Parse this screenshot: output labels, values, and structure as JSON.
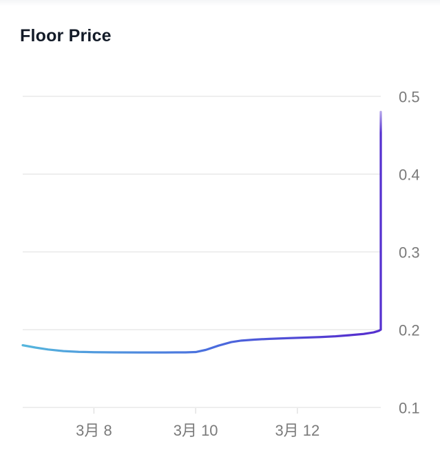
{
  "page": {
    "title": "Floor Price"
  },
  "chart_data": {
    "type": "line",
    "title": "Floor Price",
    "x_unit": "date (March / 3月)",
    "y_unit": "price",
    "legend": "none",
    "grid": "horizontal only",
    "y_axis_side": "right",
    "x_range_day": [
      6.6,
      13.64
    ],
    "y_range": [
      0.1,
      0.5
    ],
    "y_ticks": [
      "0.5",
      "0.4",
      "0.3",
      "0.2",
      "0.1"
    ],
    "y_tick_values": [
      0.5,
      0.4,
      0.3,
      0.2,
      0.1
    ],
    "x_ticks": [
      {
        "label": "3月 8",
        "day": 8
      },
      {
        "label": "3月 10",
        "day": 10
      },
      {
        "label": "3月 12",
        "day": 12
      }
    ],
    "series": [
      {
        "name": "Floor Price",
        "points_day_price": [
          [
            6.6,
            0.18
          ],
          [
            6.85,
            0.177
          ],
          [
            7.1,
            0.1745
          ],
          [
            7.4,
            0.1725
          ],
          [
            7.7,
            0.1715
          ],
          [
            8.0,
            0.171
          ],
          [
            8.4,
            0.1708
          ],
          [
            8.9,
            0.1707
          ],
          [
            9.4,
            0.1707
          ],
          [
            9.8,
            0.1708
          ],
          [
            10.0,
            0.1712
          ],
          [
            10.2,
            0.174
          ],
          [
            10.45,
            0.1795
          ],
          [
            10.7,
            0.184
          ],
          [
            10.9,
            0.186
          ],
          [
            11.15,
            0.1872
          ],
          [
            11.45,
            0.1882
          ],
          [
            11.8,
            0.189
          ],
          [
            12.1,
            0.1897
          ],
          [
            12.45,
            0.1905
          ],
          [
            12.75,
            0.1915
          ],
          [
            13.05,
            0.193
          ],
          [
            13.3,
            0.1945
          ],
          [
            13.5,
            0.1965
          ],
          [
            13.6,
            0.1985
          ],
          [
            13.64,
            0.2
          ],
          [
            13.64,
            0.48
          ]
        ]
      }
    ],
    "line_gradient": [
      "#55b6dd",
      "#4a6ede",
      "#5531cf"
    ],
    "line_width": 3.25,
    "grid_color": "#e9e9e9",
    "tick_color": "#e0e0e0",
    "label_color": "#7a7a7a",
    "title_color": "#131b28"
  }
}
